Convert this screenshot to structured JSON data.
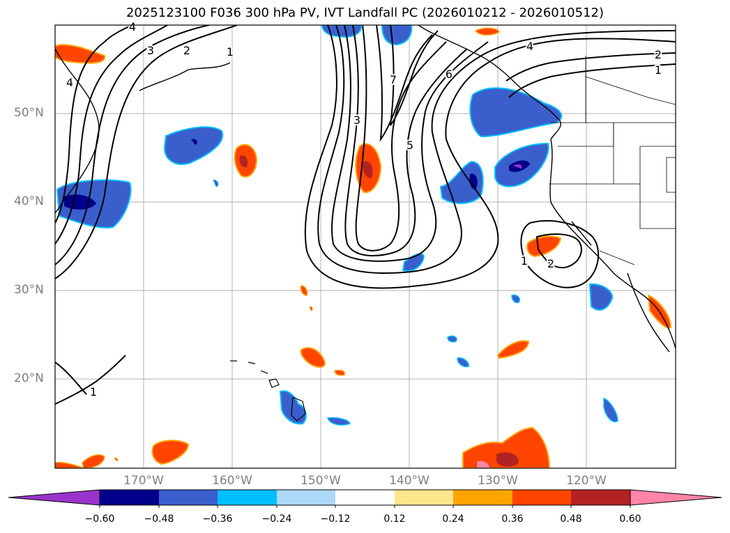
{
  "title": "2025123100 F036 300 hPa PV, IVT Landfall PC (2026010212 - 2026010512)",
  "map": {
    "lat_labels": [
      "50°N",
      "40°N",
      "30°N",
      "20°N"
    ],
    "lon_labels": [
      "170°W",
      "160°W",
      "150°W",
      "140°W",
      "130°W",
      "120°W"
    ],
    "contour_labels": [
      "4",
      "3",
      "2",
      "1",
      "4",
      "3",
      "7",
      "6",
      "5",
      "4",
      "2",
      "1",
      "1",
      "2",
      "1"
    ]
  },
  "colorbar": {
    "tick_labels": [
      "−0.60",
      "−0.48",
      "−0.36",
      "−0.24",
      "−0.12",
      "0.12",
      "0.24",
      "0.36",
      "0.48",
      "0.60"
    ],
    "colors": [
      "#9933cc",
      "#00008b",
      "#3a5fcd",
      "#00bfff",
      "#add8f7",
      "#ffffff",
      "#ffe68c",
      "#ffa500",
      "#ff4500",
      "#b22222",
      "#ff85a8"
    ],
    "extend": "both"
  }
}
